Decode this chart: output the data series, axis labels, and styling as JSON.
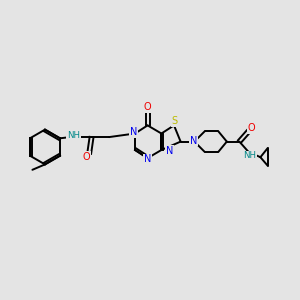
{
  "background_color": "#e4e4e4",
  "bond_color": "#000000",
  "bond_width": 1.4,
  "atoms": {
    "colors": {
      "C": "#000000",
      "N": "#0000ee",
      "O": "#ee0000",
      "S": "#bbbb00",
      "H": "#008888"
    }
  }
}
